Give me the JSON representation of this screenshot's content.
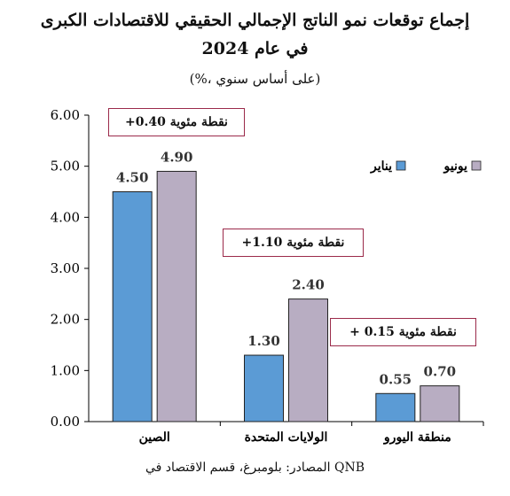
{
  "title_line1": "إجماع توقعات نمو الناتج الإجمالي الحقيقي للاقتصادات الكبرى",
  "title_line2": "في عام 2024",
  "subtitle": "(%، على أساس سنوي)",
  "source": "المصادر: بلومبرغ، قسم الاقتصاد في QNB",
  "annotations": [
    "+0.40 نقطة مئوية",
    "+1.10 نقطة مئوية",
    "+ 0.15 نقطة مئوية"
  ],
  "colors": {
    "series_jan": "#5b9bd5",
    "series_jun": "#b8adc2",
    "annotation_border": "#9b2a4a"
  },
  "chart_data": {
    "type": "bar",
    "categories": [
      "الصين",
      "الولايات المتحدة",
      "منطقة اليورو"
    ],
    "series": [
      {
        "name": "يناير",
        "values": [
          4.5,
          1.3,
          0.55
        ]
      },
      {
        "name": "يونيو",
        "values": [
          4.9,
          2.4,
          0.7
        ]
      }
    ],
    "y_ticks": [
      "0.00",
      "1.00",
      "2.00",
      "3.00",
      "4.00",
      "5.00",
      "6.00"
    ],
    "ylim": [
      0,
      6
    ],
    "legend_position": "top-right",
    "grid": false
  }
}
